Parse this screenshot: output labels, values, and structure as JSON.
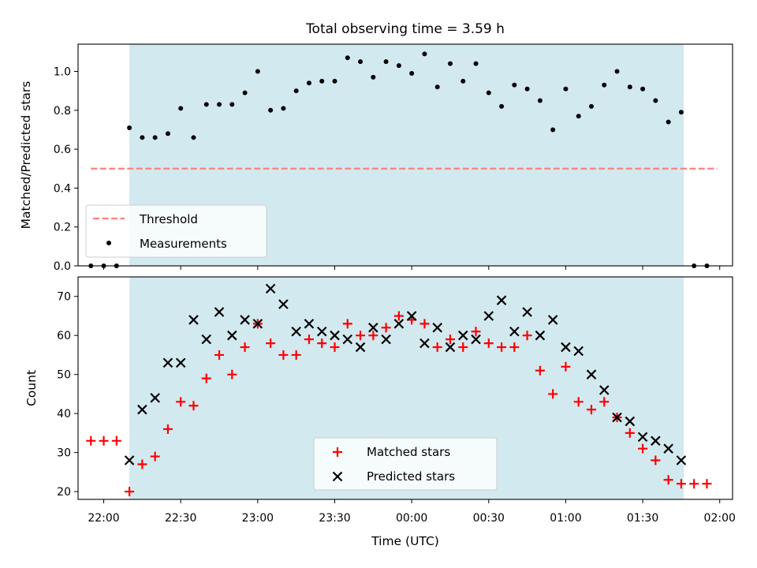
{
  "chart_data": [
    {
      "type": "scatter",
      "title": "Total observing time = 3.59 h",
      "xlabel": "",
      "ylabel": "Matched/Predicted stars",
      "x_unit": "time UTC",
      "xlim": [
        "21:50",
        "02:05"
      ],
      "ylim": [
        0.0,
        1.14
      ],
      "yticks": [
        "0.0",
        "0.2",
        "0.4",
        "0.6",
        "0.8",
        "1.0"
      ],
      "shaded_region": [
        "22:10",
        "01:46"
      ],
      "shade_color": "#d3e9f0",
      "legend_location": "lower left",
      "series": [
        {
          "name": "Threshold",
          "style": "dashed-line",
          "color": "#ff7f7f",
          "x": [
            "21:55",
            "01:59"
          ],
          "y": [
            0.5,
            0.5
          ]
        },
        {
          "name": "Measurements",
          "style": "dot",
          "color": "#000000",
          "x": [
            "21:55",
            "22:00",
            "22:05",
            "22:10",
            "22:15",
            "22:20",
            "22:25",
            "22:30",
            "22:35",
            "22:40",
            "22:45",
            "22:50",
            "22:55",
            "23:00",
            "23:05",
            "23:10",
            "23:15",
            "23:20",
            "23:25",
            "23:30",
            "23:35",
            "23:40",
            "23:45",
            "23:50",
            "23:55",
            "00:00",
            "00:05",
            "00:10",
            "00:15",
            "00:20",
            "00:25",
            "00:30",
            "00:35",
            "00:40",
            "00:45",
            "00:50",
            "00:55",
            "01:00",
            "01:05",
            "01:10",
            "01:15",
            "01:20",
            "01:25",
            "01:30",
            "01:35",
            "01:40",
            "01:45",
            "01:50",
            "01:55"
          ],
          "y": [
            0.0,
            0.0,
            0.0,
            0.71,
            0.66,
            0.66,
            0.68,
            0.81,
            0.66,
            0.83,
            0.83,
            0.83,
            0.89,
            1.0,
            0.8,
            0.81,
            0.9,
            0.94,
            0.95,
            0.95,
            1.07,
            1.05,
            0.97,
            1.05,
            1.03,
            0.99,
            1.09,
            0.92,
            1.04,
            0.95,
            1.04,
            0.89,
            0.82,
            0.93,
            0.91,
            0.85,
            0.7,
            0.91,
            0.77,
            0.82,
            0.93,
            1.0,
            0.92,
            0.91,
            0.85,
            0.74,
            0.79,
            0.0,
            0.0
          ]
        }
      ]
    },
    {
      "type": "scatter",
      "title": "",
      "xlabel": "Time (UTC)",
      "ylabel": "Count",
      "xlim": [
        "21:50",
        "02:05"
      ],
      "ylim": [
        18,
        75
      ],
      "xticks": [
        "22:00",
        "22:30",
        "23:00",
        "23:30",
        "00:00",
        "00:30",
        "01:00",
        "01:30",
        "02:00"
      ],
      "yticks": [
        "20",
        "30",
        "40",
        "50",
        "60",
        "70"
      ],
      "shaded_region": [
        "22:10",
        "01:46"
      ],
      "shade_color": "#d3e9f0",
      "legend_location": "lower center",
      "series": [
        {
          "name": "Matched stars",
          "marker": "+",
          "color": "#ff0000",
          "x": [
            "21:55",
            "22:00",
            "22:05",
            "22:10",
            "22:15",
            "22:20",
            "22:25",
            "22:30",
            "22:35",
            "22:40",
            "22:45",
            "22:50",
            "22:55",
            "23:00",
            "23:05",
            "23:10",
            "23:15",
            "23:20",
            "23:25",
            "23:30",
            "23:35",
            "23:40",
            "23:45",
            "23:50",
            "23:55",
            "00:00",
            "00:05",
            "00:10",
            "00:15",
            "00:20",
            "00:25",
            "00:30",
            "00:35",
            "00:40",
            "00:45",
            "00:50",
            "00:55",
            "01:00",
            "01:05",
            "01:10",
            "01:15",
            "01:20",
            "01:25",
            "01:30",
            "01:35",
            "01:40",
            "01:45",
            "01:50",
            "01:55"
          ],
          "y": [
            33,
            33,
            33,
            20,
            27,
            29,
            36,
            43,
            42,
            49,
            55,
            50,
            57,
            63,
            58,
            55,
            55,
            59,
            58,
            57,
            63,
            60,
            60,
            62,
            65,
            64,
            63,
            57,
            59,
            57,
            61,
            58,
            57,
            57,
            60,
            51,
            45,
            52,
            43,
            41,
            43,
            39,
            35,
            31,
            28,
            23,
            22,
            22,
            22
          ]
        },
        {
          "name": "Predicted stars",
          "marker": "x",
          "color": "#000000",
          "x": [
            "22:10",
            "22:15",
            "22:20",
            "22:25",
            "22:30",
            "22:35",
            "22:40",
            "22:45",
            "22:50",
            "22:55",
            "23:00",
            "23:05",
            "23:10",
            "23:15",
            "23:20",
            "23:25",
            "23:30",
            "23:35",
            "23:40",
            "23:45",
            "23:50",
            "23:55",
            "00:00",
            "00:05",
            "00:10",
            "00:15",
            "00:20",
            "00:25",
            "00:30",
            "00:35",
            "00:40",
            "00:45",
            "00:50",
            "00:55",
            "01:00",
            "01:05",
            "01:10",
            "01:15",
            "01:20",
            "01:25",
            "01:30",
            "01:35",
            "01:40",
            "01:45"
          ],
          "y": [
            28,
            41,
            44,
            53,
            53,
            64,
            59,
            66,
            60,
            64,
            63,
            72,
            68,
            61,
            63,
            61,
            60,
            59,
            57,
            62,
            59,
            63,
            65,
            58,
            62,
            57,
            60,
            59,
            65,
            69,
            61,
            66,
            60,
            64,
            57,
            56,
            50,
            46,
            39,
            38,
            34,
            33,
            31,
            28
          ]
        }
      ]
    }
  ]
}
